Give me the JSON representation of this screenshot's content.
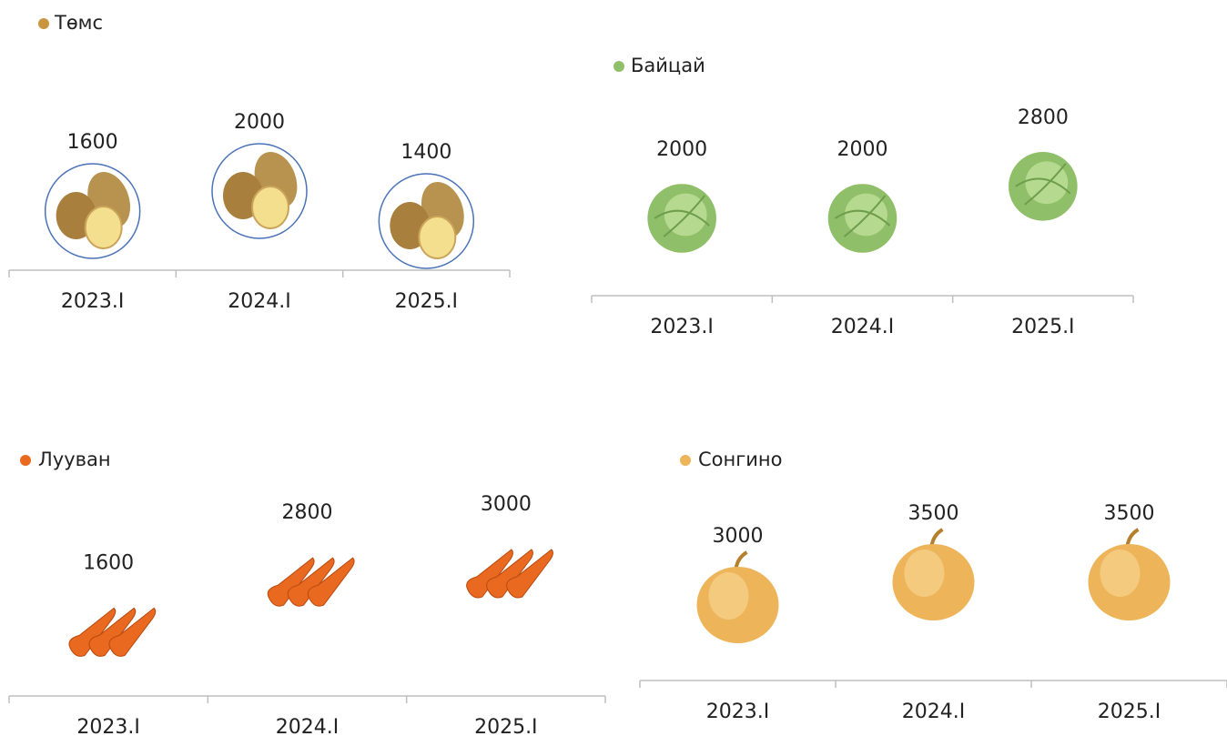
{
  "chart_data": [
    {
      "type": "pictograph",
      "title": "Төмс",
      "icon": "potato",
      "categories": [
        "2023.I",
        "2024.I",
        "2025.I"
      ],
      "values": [
        1600,
        2000,
        1400
      ]
    },
    {
      "type": "pictograph",
      "title": "Байцай",
      "icon": "cabbage",
      "categories": [
        "2023.I",
        "2024.I",
        "2025.I"
      ],
      "values": [
        2000,
        2000,
        2800
      ]
    },
    {
      "type": "pictograph",
      "title": "Лууван",
      "icon": "carrot",
      "categories": [
        "2023.I",
        "2024.I",
        "2025.I"
      ],
      "values": [
        1600,
        2800,
        3000
      ]
    },
    {
      "type": "pictograph",
      "title": "Сонгино",
      "icon": "onion",
      "categories": [
        "2023.I",
        "2024.I",
        "2025.I"
      ],
      "values": [
        3000,
        3500,
        3500
      ]
    }
  ]
}
